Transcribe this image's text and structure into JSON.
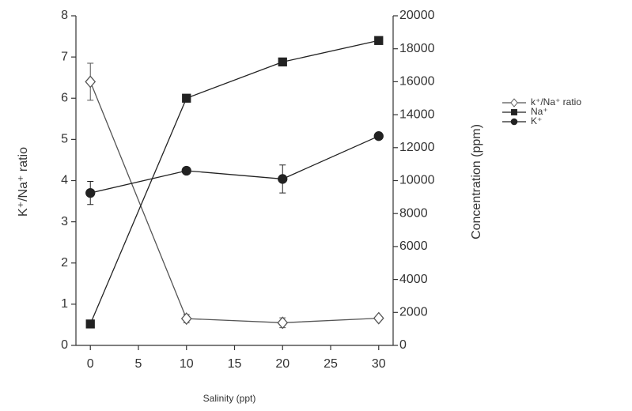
{
  "chart_data": {
    "type": "line",
    "x_label": "Salinity (ppt)",
    "y_label": "K⁺/Na⁺ ratio",
    "y2_label": "Concentration (ppm)",
    "x": [
      0,
      10,
      20,
      30
    ],
    "xlim": [
      -1.5,
      31.5
    ],
    "xticks": [
      0,
      5,
      10,
      15,
      20,
      25,
      30
    ],
    "ylim": [
      0,
      8
    ],
    "yticks": [
      0,
      1,
      2,
      3,
      4,
      5,
      6,
      7,
      8
    ],
    "y2lim": [
      0,
      20000
    ],
    "y2ticks": [
      0,
      2000,
      4000,
      6000,
      8000,
      10000,
      12000,
      14000,
      16000,
      18000,
      20000
    ],
    "legend": "right",
    "series": [
      {
        "name": "k⁺/Na⁺ ratio",
        "color": "#555555",
        "marker": "diamond",
        "values": [
          6.4,
          0.65,
          0.55,
          0.66
        ],
        "errors": [
          0.45,
          0.1,
          0.12,
          0.05
        ]
      },
      {
        "name": "Na⁺",
        "color": "#222222",
        "marker": "square",
        "axis": "y2",
        "values": [
          1300,
          15000,
          17200,
          18500
        ]
      },
      {
        "name": "K⁺",
        "color": "#222222",
        "marker": "circle",
        "axis": "y2",
        "values": [
          9250,
          10600,
          10100,
          12700
        ],
        "errors": [
          700,
          200,
          850,
          200
        ]
      }
    ]
  }
}
